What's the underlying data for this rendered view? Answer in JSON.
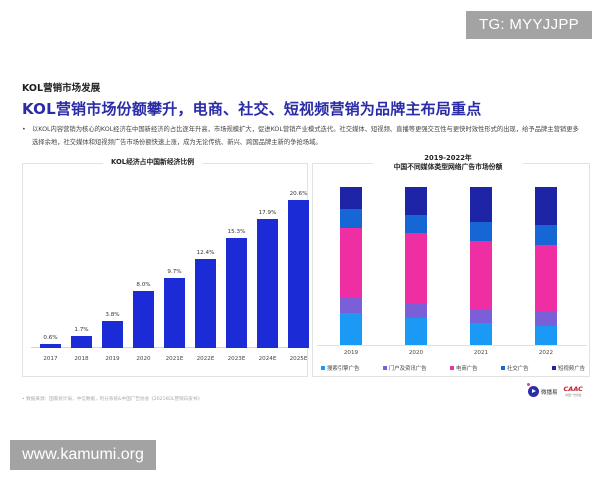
{
  "overlays": {
    "tg_watermark": "TG: MYYJJPP",
    "site_watermark": "www.kamumi.org"
  },
  "slide": {
    "section_label": "KOL营销市场发展",
    "headline": "KOL营销市场份额攀升，电商、社交、短视频营销为品牌主布局重点",
    "bullet_marker": "•",
    "bullet_text": "以KOL内容营销为核心的KOL经济在中国新经济的占比逐年升高，市场规模扩大，促进KOL营销产业模式迭代。社交媒体、短视频、直播等更强交互性与更快时效性形式的出现，给予品牌主营销更多选择余地，社交媒体和短视频广告市场份额快速上涨，成为无论传统、新兴、跨国品牌主新的争抢场域。",
    "source_note": "•  数据来源：国家统计局，中信数据，利分系统&中国广告协会《2021KOL营销白皮书》",
    "logos": {
      "brand1": "微播易",
      "brand2": "CAAC",
      "brand2_sub": "中国广告协会"
    }
  },
  "chart_data": [
    {
      "type": "bar",
      "title": "KOL经济占中国新经济比例",
      "categories": [
        "2017",
        "2018",
        "2019",
        "2020",
        "2021E",
        "2022E",
        "2023E",
        "2024E",
        "2025E"
      ],
      "values": [
        0.6,
        1.7,
        3.8,
        8.0,
        9.7,
        12.4,
        15.3,
        17.9,
        20.6
      ],
      "labels": [
        "0.6%",
        "1.7%",
        "3.8%",
        "8.0%",
        "9.7%",
        "12.4%",
        "15.3%",
        "17.9%",
        "20.6%"
      ],
      "xlabel": "",
      "ylabel": "",
      "unit": "%",
      "ylim": [
        0,
        22
      ],
      "grid": false,
      "color": "#1b2bd6"
    },
    {
      "type": "bar",
      "stacked": true,
      "percent": true,
      "title": "2019-2022年\n中国不同媒体类型网络广告市场份额",
      "title_line1": "2019-2022年",
      "title_line2": "中国不同媒体类型网络广告市场份额",
      "categories": [
        "2019",
        "2020",
        "2021",
        "2022"
      ],
      "series": [
        {
          "name": "搜索引擎广告",
          "color": "#1a9af5",
          "values": [
            20,
            17,
            14,
            12
          ]
        },
        {
          "name": "门户及资讯广告",
          "color": "#7a5fd9",
          "values": [
            10,
            9,
            9,
            9
          ]
        },
        {
          "name": "电商广告",
          "color": "#f02ea3",
          "values": [
            44,
            45,
            43,
            42
          ]
        },
        {
          "name": "社交广告",
          "color": "#1766d6",
          "values": [
            12,
            11,
            12,
            13
          ]
        },
        {
          "name": "短视频广告",
          "color": "#1e24a6",
          "values": [
            14,
            18,
            22,
            24
          ]
        }
      ],
      "xlabel": "",
      "ylabel": "",
      "ylim": [
        0,
        100
      ],
      "grid": false,
      "legend_position": "bottom"
    }
  ]
}
